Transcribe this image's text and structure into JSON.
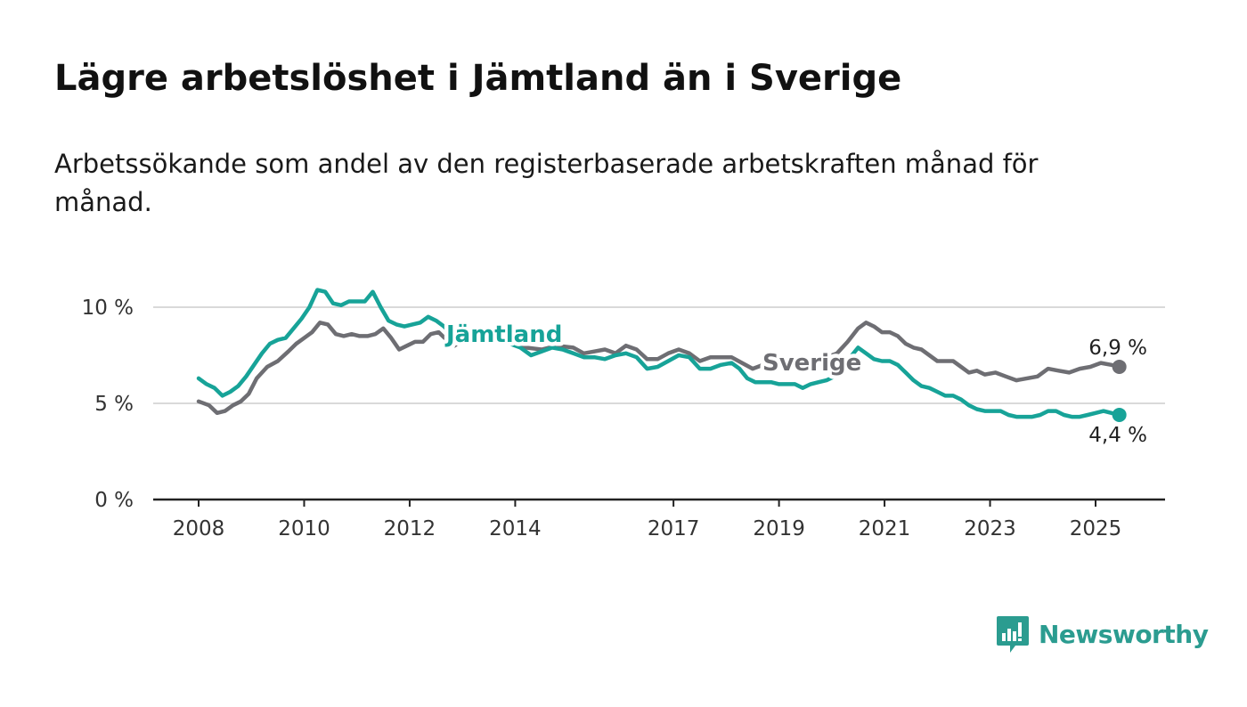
{
  "title": "Lägre arbetslöshet i Jämtland än i Sverige",
  "subtitle": "Arbetssökande som andel av den registerbaserade arbetskraften månad för månad.",
  "logo": {
    "text": "Newsworthy",
    "icon": "newsworthy-logo-icon",
    "color": "#2b9c90"
  },
  "chart_data": {
    "type": "line",
    "title": "Lägre arbetslöshet i Jämtland än i Sverige",
    "subtitle": "Arbetssökande som andel av den registerbaserade arbetskraften månad för månad.",
    "x_tick_labels": [
      "2008",
      "2010",
      "2012",
      "2014",
      "2017",
      "2019",
      "2021",
      "2023",
      "2025"
    ],
    "x_ticks": [
      2008,
      2010,
      2012,
      2014,
      2017,
      2019,
      2021,
      2023,
      2025
    ],
    "xlim": [
      2007.15,
      2026.3
    ],
    "y_tick_labels": [
      "0 %",
      "5 %",
      "10 %"
    ],
    "y_ticks": [
      0,
      5,
      10
    ],
    "ylim": [
      0,
      10
    ],
    "grid": "horizontal",
    "series": [
      {
        "name": "Sverige",
        "color": "#6e6e73",
        "end_label": "6,9 %",
        "points": [
          [
            2008.0,
            5.1
          ],
          [
            2008.2,
            4.9
          ],
          [
            2008.35,
            4.5
          ],
          [
            2008.5,
            4.6
          ],
          [
            2008.65,
            4.9
          ],
          [
            2008.8,
            5.1
          ],
          [
            2008.95,
            5.5
          ],
          [
            2009.1,
            6.3
          ],
          [
            2009.3,
            6.9
          ],
          [
            2009.5,
            7.2
          ],
          [
            2009.7,
            7.7
          ],
          [
            2009.85,
            8.1
          ],
          [
            2010.0,
            8.4
          ],
          [
            2010.15,
            8.7
          ],
          [
            2010.3,
            9.2
          ],
          [
            2010.45,
            9.1
          ],
          [
            2010.6,
            8.6
          ],
          [
            2010.75,
            8.5
          ],
          [
            2010.9,
            8.6
          ],
          [
            2011.05,
            8.5
          ],
          [
            2011.2,
            8.5
          ],
          [
            2011.35,
            8.6
          ],
          [
            2011.5,
            8.9
          ],
          [
            2011.65,
            8.4
          ],
          [
            2011.8,
            7.8
          ],
          [
            2011.95,
            8.0
          ],
          [
            2012.1,
            8.2
          ],
          [
            2012.25,
            8.2
          ],
          [
            2012.4,
            8.6
          ],
          [
            2012.55,
            8.7
          ],
          [
            2012.7,
            8.3
          ],
          [
            2012.85,
            8.0
          ],
          [
            2013.0,
            8.3
          ],
          [
            2013.2,
            8.3
          ],
          [
            2013.4,
            8.2
          ],
          [
            2013.6,
            8.3
          ],
          [
            2013.8,
            8.2
          ],
          [
            2014.0,
            8.1
          ],
          [
            2014.2,
            7.9
          ],
          [
            2014.5,
            7.8
          ],
          [
            2014.8,
            8.0
          ],
          [
            2015.1,
            7.9
          ],
          [
            2015.3,
            7.6
          ],
          [
            2015.5,
            7.7
          ],
          [
            2015.7,
            7.8
          ],
          [
            2015.9,
            7.6
          ],
          [
            2016.1,
            8.0
          ],
          [
            2016.3,
            7.8
          ],
          [
            2016.5,
            7.3
          ],
          [
            2016.7,
            7.3
          ],
          [
            2016.9,
            7.6
          ],
          [
            2017.1,
            7.8
          ],
          [
            2017.3,
            7.6
          ],
          [
            2017.5,
            7.2
          ],
          [
            2017.7,
            7.4
          ],
          [
            2017.9,
            7.4
          ],
          [
            2018.1,
            7.4
          ],
          [
            2018.3,
            7.1
          ],
          [
            2018.5,
            6.8
          ],
          [
            2018.7,
            7.0
          ],
          [
            2018.9,
            7.0
          ],
          [
            2019.1,
            7.0
          ],
          [
            2019.3,
            7.0
          ],
          [
            2019.5,
            7.1
          ],
          [
            2019.7,
            7.2
          ],
          [
            2019.9,
            7.4
          ],
          [
            2020.1,
            7.6
          ],
          [
            2020.3,
            8.2
          ],
          [
            2020.5,
            8.9
          ],
          [
            2020.65,
            9.2
          ],
          [
            2020.8,
            9.0
          ],
          [
            2020.95,
            8.7
          ],
          [
            2021.1,
            8.7
          ],
          [
            2021.25,
            8.5
          ],
          [
            2021.4,
            8.1
          ],
          [
            2021.55,
            7.9
          ],
          [
            2021.7,
            7.8
          ],
          [
            2021.85,
            7.5
          ],
          [
            2022.0,
            7.2
          ],
          [
            2022.15,
            7.2
          ],
          [
            2022.3,
            7.2
          ],
          [
            2022.45,
            6.9
          ],
          [
            2022.6,
            6.6
          ],
          [
            2022.75,
            6.7
          ],
          [
            2022.9,
            6.5
          ],
          [
            2023.1,
            6.6
          ],
          [
            2023.3,
            6.4
          ],
          [
            2023.5,
            6.2
          ],
          [
            2023.7,
            6.3
          ],
          [
            2023.9,
            6.4
          ],
          [
            2024.1,
            6.8
          ],
          [
            2024.3,
            6.7
          ],
          [
            2024.5,
            6.6
          ],
          [
            2024.7,
            6.8
          ],
          [
            2024.9,
            6.9
          ],
          [
            2025.1,
            7.1
          ],
          [
            2025.3,
            7.0
          ],
          [
            2025.45,
            6.9
          ]
        ]
      },
      {
        "name": "Jämtland",
        "color": "#17a398",
        "end_label": "4,4 %",
        "points": [
          [
            2008.0,
            6.3
          ],
          [
            2008.15,
            6.0
          ],
          [
            2008.3,
            5.8
          ],
          [
            2008.45,
            5.4
          ],
          [
            2008.6,
            5.6
          ],
          [
            2008.75,
            5.9
          ],
          [
            2008.9,
            6.4
          ],
          [
            2009.05,
            7.0
          ],
          [
            2009.2,
            7.6
          ],
          [
            2009.35,
            8.1
          ],
          [
            2009.5,
            8.3
          ],
          [
            2009.65,
            8.4
          ],
          [
            2009.8,
            8.9
          ],
          [
            2009.95,
            9.4
          ],
          [
            2010.1,
            10.0
          ],
          [
            2010.25,
            10.9
          ],
          [
            2010.4,
            10.8
          ],
          [
            2010.55,
            10.2
          ],
          [
            2010.7,
            10.1
          ],
          [
            2010.85,
            10.3
          ],
          [
            2011.0,
            10.3
          ],
          [
            2011.15,
            10.3
          ],
          [
            2011.3,
            10.8
          ],
          [
            2011.45,
            10.0
          ],
          [
            2011.6,
            9.3
          ],
          [
            2011.75,
            9.1
          ],
          [
            2011.9,
            9.0
          ],
          [
            2012.05,
            9.1
          ],
          [
            2012.2,
            9.2
          ],
          [
            2012.35,
            9.5
          ],
          [
            2012.5,
            9.3
          ],
          [
            2012.65,
            9.0
          ],
          [
            2012.8,
            8.6
          ],
          [
            2012.95,
            8.4
          ],
          [
            2013.1,
            8.3
          ],
          [
            2013.3,
            8.3
          ],
          [
            2013.5,
            8.2
          ],
          [
            2013.7,
            8.3
          ],
          [
            2013.9,
            8.1
          ],
          [
            2014.1,
            7.9
          ],
          [
            2014.3,
            7.5
          ],
          [
            2014.5,
            7.7
          ],
          [
            2014.7,
            7.9
          ],
          [
            2014.9,
            7.8
          ],
          [
            2015.1,
            7.6
          ],
          [
            2015.3,
            7.4
          ],
          [
            2015.5,
            7.4
          ],
          [
            2015.7,
            7.3
          ],
          [
            2015.9,
            7.5
          ],
          [
            2016.1,
            7.6
          ],
          [
            2016.3,
            7.4
          ],
          [
            2016.5,
            6.8
          ],
          [
            2016.7,
            6.9
          ],
          [
            2016.9,
            7.2
          ],
          [
            2017.1,
            7.5
          ],
          [
            2017.3,
            7.4
          ],
          [
            2017.5,
            6.8
          ],
          [
            2017.7,
            6.8
          ],
          [
            2017.9,
            7.0
          ],
          [
            2018.1,
            7.1
          ],
          [
            2018.25,
            6.8
          ],
          [
            2018.4,
            6.3
          ],
          [
            2018.55,
            6.1
          ],
          [
            2018.7,
            6.1
          ],
          [
            2018.85,
            6.1
          ],
          [
            2019.0,
            6.0
          ],
          [
            2019.15,
            6.0
          ],
          [
            2019.3,
            6.0
          ],
          [
            2019.45,
            5.8
          ],
          [
            2019.6,
            6.0
          ],
          [
            2019.75,
            6.1
          ],
          [
            2019.9,
            6.2
          ],
          [
            2020.05,
            6.4
          ],
          [
            2020.2,
            6.9
          ],
          [
            2020.35,
            7.4
          ],
          [
            2020.5,
            7.9
          ],
          [
            2020.65,
            7.6
          ],
          [
            2020.8,
            7.3
          ],
          [
            2020.95,
            7.2
          ],
          [
            2021.1,
            7.2
          ],
          [
            2021.25,
            7.0
          ],
          [
            2021.4,
            6.6
          ],
          [
            2021.55,
            6.2
          ],
          [
            2021.7,
            5.9
          ],
          [
            2021.85,
            5.8
          ],
          [
            2022.0,
            5.6
          ],
          [
            2022.15,
            5.4
          ],
          [
            2022.3,
            5.4
          ],
          [
            2022.45,
            5.2
          ],
          [
            2022.6,
            4.9
          ],
          [
            2022.75,
            4.7
          ],
          [
            2022.9,
            4.6
          ],
          [
            2023.05,
            4.6
          ],
          [
            2023.2,
            4.6
          ],
          [
            2023.35,
            4.4
          ],
          [
            2023.5,
            4.3
          ],
          [
            2023.65,
            4.3
          ],
          [
            2023.8,
            4.3
          ],
          [
            2023.95,
            4.4
          ],
          [
            2024.1,
            4.6
          ],
          [
            2024.25,
            4.6
          ],
          [
            2024.4,
            4.4
          ],
          [
            2024.55,
            4.3
          ],
          [
            2024.7,
            4.3
          ],
          [
            2024.85,
            4.4
          ],
          [
            2025.0,
            4.5
          ],
          [
            2025.15,
            4.6
          ],
          [
            2025.3,
            4.5
          ],
          [
            2025.45,
            4.4
          ]
        ]
      }
    ]
  }
}
